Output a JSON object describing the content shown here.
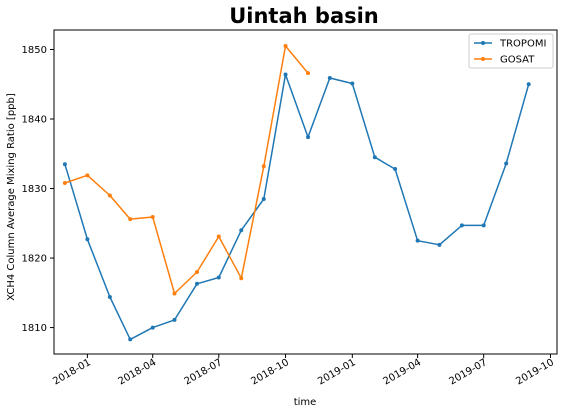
{
  "chart_data": {
    "type": "line",
    "title": "Uintah basin",
    "xlabel": "time",
    "ylabel": "XCH4 Column Average Mixing Ratio [ppb]",
    "x_range": [
      "2017-11-16",
      "2019-10-10"
    ],
    "ylim": [
      1806.2,
      1852.8
    ],
    "x_ticks": [
      {
        "date": "2018-01-01",
        "label": "2018-01"
      },
      {
        "date": "2018-04-01",
        "label": "2018-04"
      },
      {
        "date": "2018-07-01",
        "label": "2018-07"
      },
      {
        "date": "2018-10-01",
        "label": "2018-10"
      },
      {
        "date": "2019-01-01",
        "label": "2019-01"
      },
      {
        "date": "2019-04-01",
        "label": "2019-04"
      },
      {
        "date": "2019-07-01",
        "label": "2019-07"
      },
      {
        "date": "2019-10-01",
        "label": "2019-10"
      }
    ],
    "y_ticks": [
      1810,
      1820,
      1830,
      1840,
      1850
    ],
    "grid": false,
    "legend_position": "top-right",
    "series": [
      {
        "name": "TROPOMI",
        "color": "#1f77b4",
        "points": [
          {
            "x": "2017-12-01",
            "y": 1833.5
          },
          {
            "x": "2018-01-01",
            "y": 1822.7
          },
          {
            "x": "2018-02-01",
            "y": 1814.4
          },
          {
            "x": "2018-03-01",
            "y": 1808.3
          },
          {
            "x": "2018-04-01",
            "y": 1810.0
          },
          {
            "x": "2018-05-01",
            "y": 1811.1
          },
          {
            "x": "2018-06-01",
            "y": 1816.3
          },
          {
            "x": "2018-07-01",
            "y": 1817.2
          },
          {
            "x": "2018-08-01",
            "y": 1824.0
          },
          {
            "x": "2018-09-01",
            "y": 1828.5
          },
          {
            "x": "2018-10-01",
            "y": 1846.4
          },
          {
            "x": "2018-11-01",
            "y": 1837.4
          },
          {
            "x": "2018-12-01",
            "y": 1845.9
          },
          {
            "x": "2019-01-01",
            "y": 1845.1
          },
          {
            "x": "2019-02-01",
            "y": 1834.5
          },
          {
            "x": "2019-03-01",
            "y": 1832.8
          },
          {
            "x": "2019-04-01",
            "y": 1822.5
          },
          {
            "x": "2019-05-01",
            "y": 1821.9
          },
          {
            "x": "2019-06-01",
            "y": 1824.7
          },
          {
            "x": "2019-07-01",
            "y": 1824.7
          },
          {
            "x": "2019-08-01",
            "y": 1833.6
          },
          {
            "x": "2019-09-01",
            "y": 1845.0
          }
        ]
      },
      {
        "name": "GOSAT",
        "color": "#ff7f0e",
        "points": [
          {
            "x": "2017-12-01",
            "y": 1830.8
          },
          {
            "x": "2018-01-01",
            "y": 1831.9
          },
          {
            "x": "2018-02-01",
            "y": 1829.0
          },
          {
            "x": "2018-03-01",
            "y": 1825.6
          },
          {
            "x": "2018-04-01",
            "y": 1825.9
          },
          {
            "x": "2018-05-01",
            "y": 1814.9
          },
          {
            "x": "2018-06-01",
            "y": 1818.0
          },
          {
            "x": "2018-07-01",
            "y": 1823.1
          },
          {
            "x": "2018-08-01",
            "y": 1817.1
          },
          {
            "x": "2018-09-01",
            "y": 1833.2
          },
          {
            "x": "2018-10-01",
            "y": 1850.5
          },
          {
            "x": "2018-11-01",
            "y": 1846.6
          }
        ]
      }
    ]
  }
}
